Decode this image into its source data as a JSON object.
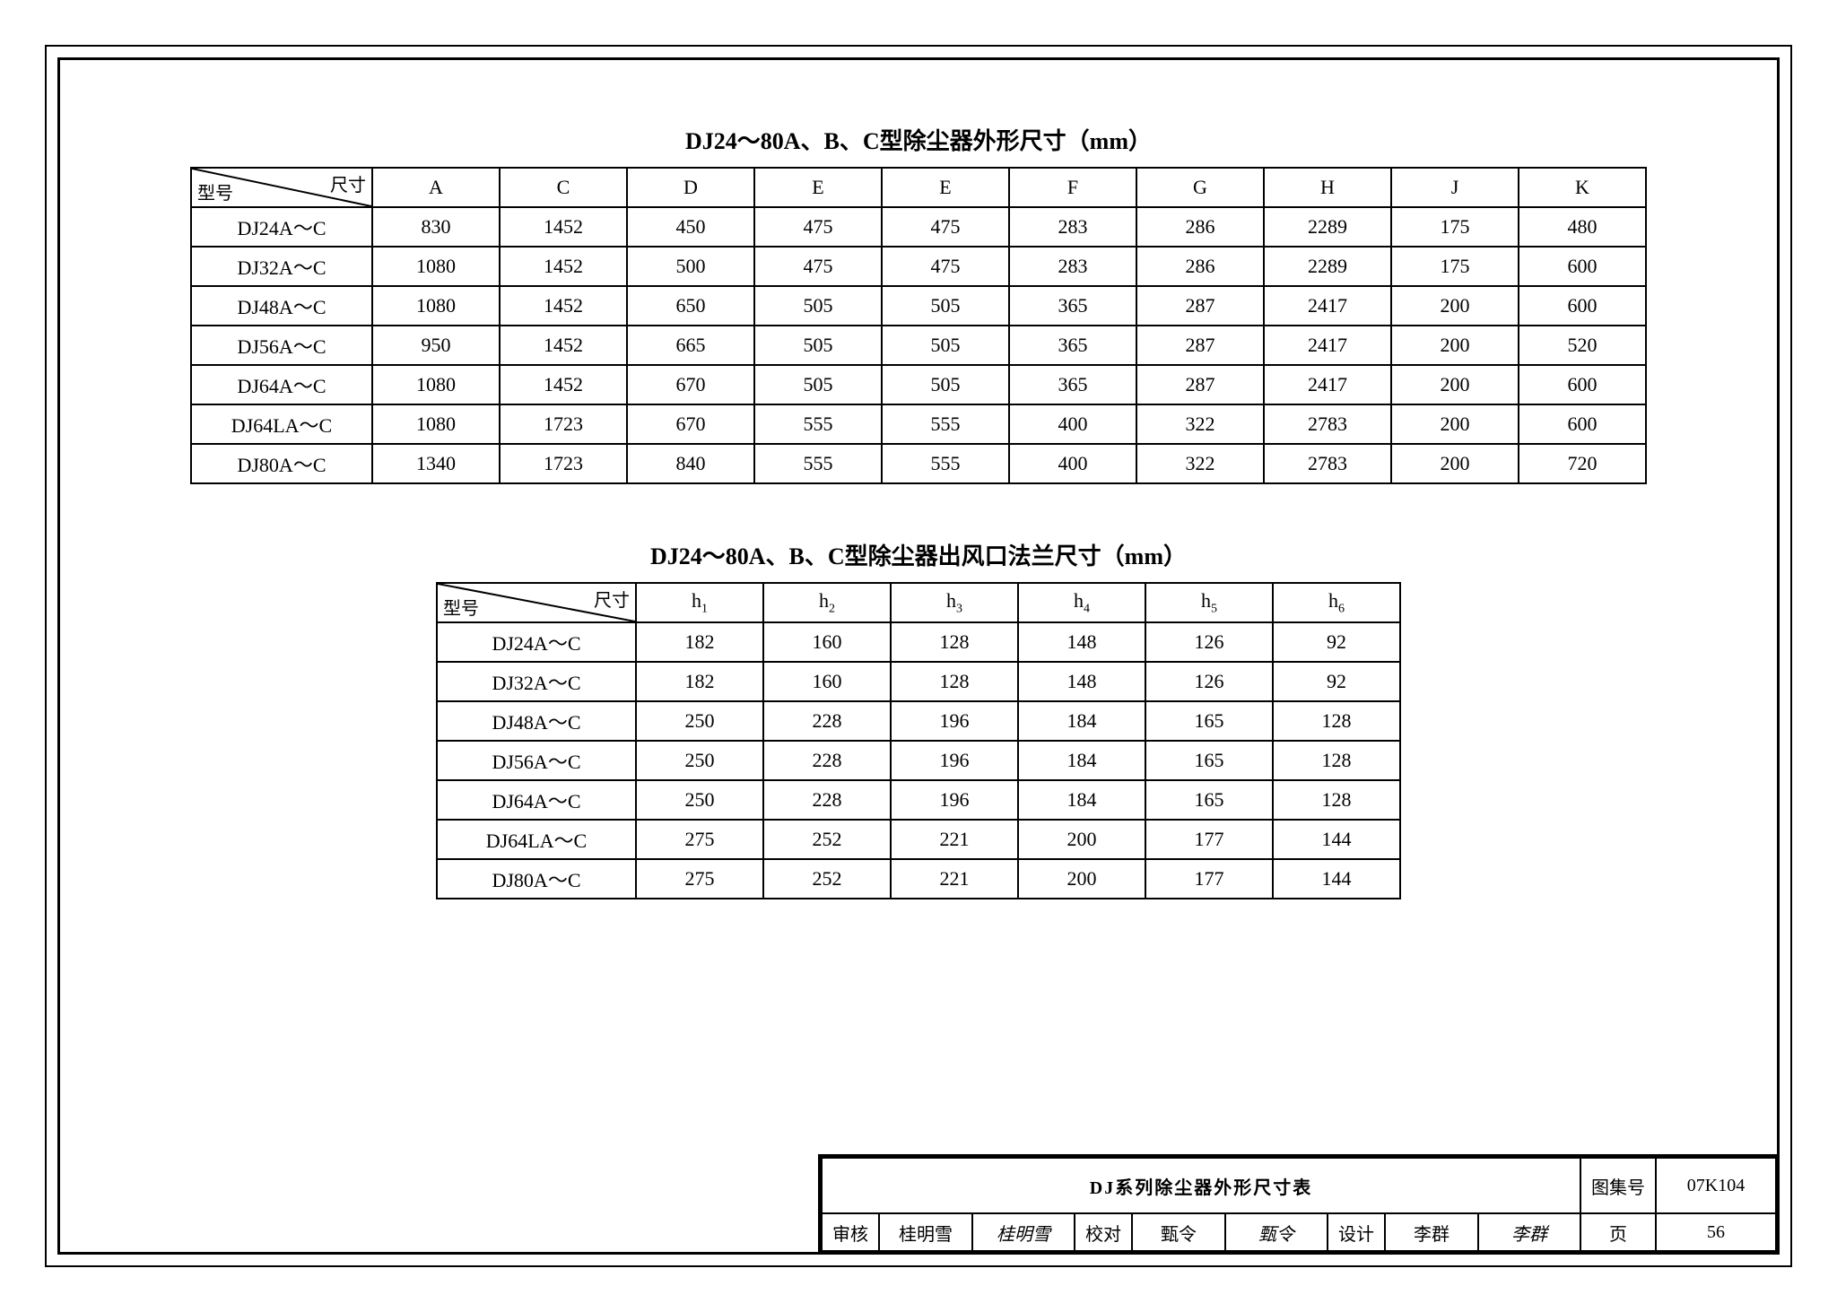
{
  "table1": {
    "title": "DJ24～80A、B、C型除尘器外形尺寸（mm）",
    "diag_top": "尺寸",
    "diag_left": "型号",
    "columns": [
      "A",
      "C",
      "D",
      "E",
      "E",
      "F",
      "G",
      "H",
      "J",
      "K"
    ],
    "col_width_first": 200,
    "col_width_rest": 140,
    "rows": [
      {
        "model": "DJ24A～C",
        "v": [
          "830",
          "1452",
          "450",
          "475",
          "475",
          "283",
          "286",
          "2289",
          "175",
          "480"
        ]
      },
      {
        "model": "DJ32A～C",
        "v": [
          "1080",
          "1452",
          "500",
          "475",
          "475",
          "283",
          "286",
          "2289",
          "175",
          "600"
        ]
      },
      {
        "model": "DJ48A～C",
        "v": [
          "1080",
          "1452",
          "650",
          "505",
          "505",
          "365",
          "287",
          "2417",
          "200",
          "600"
        ]
      },
      {
        "model": "DJ56A～C",
        "v": [
          "950",
          "1452",
          "665",
          "505",
          "505",
          "365",
          "287",
          "2417",
          "200",
          "520"
        ]
      },
      {
        "model": "DJ64A～C",
        "v": [
          "1080",
          "1452",
          "670",
          "505",
          "505",
          "365",
          "287",
          "2417",
          "200",
          "600"
        ]
      },
      {
        "model": "DJ64LA～C",
        "v": [
          "1080",
          "1723",
          "670",
          "555",
          "555",
          "400",
          "322",
          "2783",
          "200",
          "600"
        ]
      },
      {
        "model": "DJ80A～C",
        "v": [
          "1340",
          "1723",
          "840",
          "555",
          "555",
          "400",
          "322",
          "2783",
          "200",
          "720"
        ]
      }
    ]
  },
  "table2": {
    "title": "DJ24～80A、B、C型除尘器出风口法兰尺寸（mm）",
    "diag_top": "尺寸",
    "diag_left": "型号",
    "columns_html": [
      "h<sub class='sub'>1</sub>",
      "h<sub class='sub'>2</sub>",
      "h<sub class='sub'>3</sub>",
      "h<sub class='sub'>4</sub>",
      "h<sub class='sub'>5</sub>",
      "h<sub class='sub'>6</sub>"
    ],
    "col_width_first": 220,
    "col_width_rest": 140,
    "rows": [
      {
        "model": "DJ24A～C",
        "v": [
          "182",
          "160",
          "128",
          "148",
          "126",
          "92"
        ]
      },
      {
        "model": "DJ32A～C",
        "v": [
          "182",
          "160",
          "128",
          "148",
          "126",
          "92"
        ]
      },
      {
        "model": "DJ48A～C",
        "v": [
          "250",
          "228",
          "196",
          "184",
          "165",
          "128"
        ]
      },
      {
        "model": "DJ56A～C",
        "v": [
          "250",
          "228",
          "196",
          "184",
          "165",
          "128"
        ]
      },
      {
        "model": "DJ64A～C",
        "v": [
          "250",
          "228",
          "196",
          "184",
          "165",
          "128"
        ]
      },
      {
        "model": "DJ64LA～C",
        "v": [
          "275",
          "252",
          "221",
          "200",
          "177",
          "144"
        ]
      },
      {
        "model": "DJ80A～C",
        "v": [
          "275",
          "252",
          "221",
          "200",
          "177",
          "144"
        ]
      }
    ]
  },
  "titleblock": {
    "main": "DJ系列除尘器外形尺寸表",
    "tuji_label": "图集号",
    "tuji_value": "07K104",
    "page_label": "页",
    "page_value": "56",
    "review_label": "审核",
    "review_name": "桂明雪",
    "review_sig": "桂明雪",
    "check_label": "校对",
    "check_name": "甄令",
    "check_sig": "甄令",
    "design_label": "设计",
    "design_name": "李群",
    "design_sig": "李群"
  }
}
